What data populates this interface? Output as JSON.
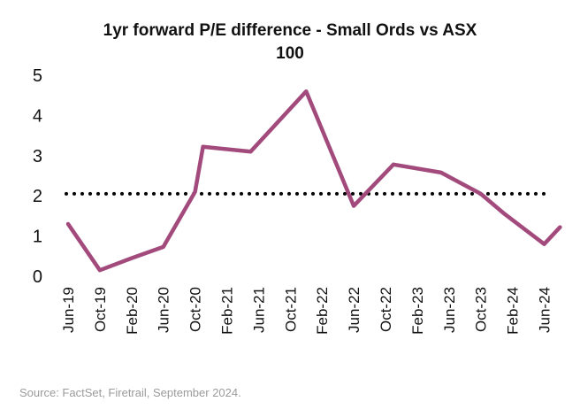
{
  "title_line1": "1yr forward P/E difference - Small Ords vs ASX",
  "title_line2": "100",
  "source": "Source: FactSet, Firetrail, September 2024.",
  "chart_data": {
    "type": "line",
    "title": "1yr forward P/E difference - Small Ords vs ASX 100",
    "x_tick_labels": [
      "Jun-19",
      "Oct-19",
      "Feb-20",
      "Jun-20",
      "Oct-20",
      "Feb-21",
      "Jun-21",
      "Oct-21",
      "Feb-22",
      "Jun-22",
      "Oct-22",
      "Feb-23",
      "Jun-23",
      "Oct-23",
      "Feb-24",
      "Jun-24"
    ],
    "y_ticks": [
      0,
      1,
      2,
      3,
      4,
      5
    ],
    "ylim": [
      0,
      5
    ],
    "grid": false,
    "series": [
      {
        "color": "#a34a7c",
        "points": [
          {
            "x": "Jun-19",
            "y": 1.3
          },
          {
            "x": "Oct-19",
            "y": 0.15
          },
          {
            "x": "Feb-20",
            "y": 0.45
          },
          {
            "x": "Jun-20",
            "y": 0.73
          },
          {
            "x": "Oct-20",
            "y": 2.1
          },
          {
            "x": "Nov-20",
            "y": 3.22
          },
          {
            "x": "May-21",
            "y": 3.1
          },
          {
            "x": "Dec-21",
            "y": 4.6
          },
          {
            "x": "Jun-22",
            "y": 1.75
          },
          {
            "x": "Nov-22",
            "y": 2.78
          },
          {
            "x": "May-23",
            "y": 2.58
          },
          {
            "x": "Oct-23",
            "y": 2.05
          },
          {
            "x": "Jan-24",
            "y": 1.55
          },
          {
            "x": "Jun-24",
            "y": 0.8
          },
          {
            "x": "Aug-24",
            "y": 1.22
          }
        ]
      }
    ],
    "reference_line": {
      "y": 2.05,
      "style": "dotted",
      "color": "#000000"
    }
  }
}
